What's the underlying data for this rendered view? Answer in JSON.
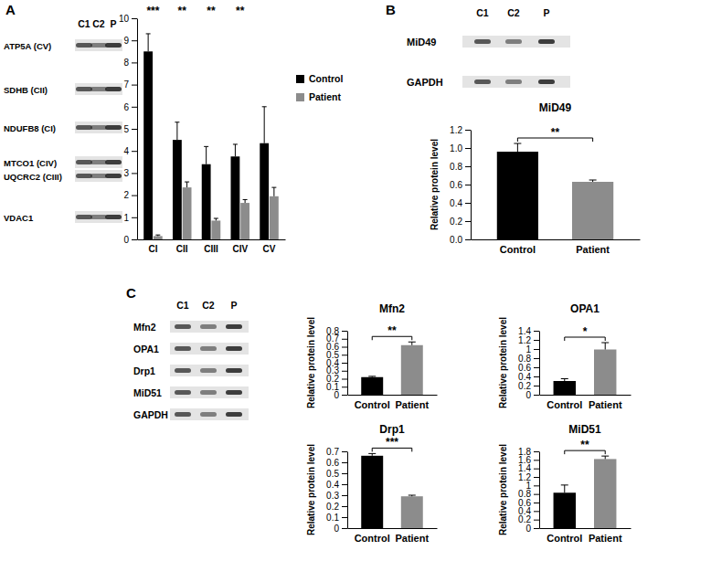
{
  "chart_data": [
    {
      "type": "bar",
      "categories": [
        "CI",
        "CII",
        "CIII",
        "CIV",
        "CV"
      ],
      "series": [
        {
          "name": "Control",
          "color": "#000000",
          "values": [
            8.5,
            4.5,
            3.4,
            3.75,
            4.35
          ],
          "errors": [
            0.8,
            0.8,
            0.8,
            0.55,
            1.65
          ]
        },
        {
          "name": "Patient",
          "color": "#8c8c8c",
          "values": [
            0.15,
            2.35,
            0.85,
            1.65,
            1.95
          ],
          "errors": [
            0.05,
            0.25,
            0.1,
            0.15,
            0.4
          ]
        }
      ],
      "annotations": [
        "***",
        "**",
        "**",
        "**",
        null
      ],
      "ylim": [
        0,
        10
      ],
      "yticks": [
        0,
        1,
        2,
        3,
        4,
        5,
        6,
        7,
        8,
        9,
        10
      ],
      "legend": "top-right"
    },
    {
      "type": "bar",
      "title": "MiD49",
      "y_label": "Relative protein level",
      "categories": [
        "Control",
        "Patient"
      ],
      "values": [
        0.96,
        0.63
      ],
      "errors": [
        0.09,
        0.02
      ],
      "colors": [
        "#000000",
        "#8c8c8c"
      ],
      "annotation": "**",
      "ylim": [
        0,
        1.2
      ],
      "yticks": [
        {
          "value": 0,
          "label": "0.0"
        },
        0.2,
        0.4,
        0.6,
        0.8,
        {
          "value": 1,
          "label": "1.0"
        },
        1.2
      ]
    },
    {
      "type": "bar",
      "title": "Mfn2",
      "y_label": "Relative protein level",
      "categories": [
        "Control",
        "Patient"
      ],
      "values": [
        0.22,
        0.62
      ],
      "errors": [
        0.01,
        0.04
      ],
      "colors": [
        "#000000",
        "#8c8c8c"
      ],
      "annotation": "**",
      "ylim": [
        0,
        0.8
      ],
      "yticks": [
        0,
        0.1,
        0.2,
        0.3,
        0.4,
        0.5,
        0.6,
        0.7,
        0.8
      ]
    },
    {
      "type": "bar",
      "title": "OPA1",
      "y_label": "Relative protein level",
      "categories": [
        "Control",
        "Patient"
      ],
      "values": [
        0.3,
        0.99
      ],
      "errors": [
        0.05,
        0.15
      ],
      "colors": [
        "#000000",
        "#8c8c8c"
      ],
      "annotation": "*",
      "ylim": [
        0,
        1.4
      ],
      "yticks": [
        0,
        0.2,
        0.4,
        0.6,
        0.8,
        1,
        1.2,
        1.4
      ]
    },
    {
      "type": "bar",
      "title": "Drp1",
      "y_label": "Relative protein level",
      "categories": [
        "Control",
        "Patient"
      ],
      "values": [
        0.66,
        0.29
      ],
      "errors": [
        0.02,
        0.01
      ],
      "colors": [
        "#000000",
        "#8c8c8c"
      ],
      "annotation": "***",
      "ylim": [
        0,
        0.7
      ],
      "yticks": [
        0,
        0.1,
        0.2,
        0.3,
        0.4,
        0.5,
        0.6,
        0.7
      ]
    },
    {
      "type": "bar",
      "title": "MiD51",
      "y_label": "Relative protein level",
      "categories": [
        "Control",
        "Patient"
      ],
      "values": [
        0.83,
        1.62
      ],
      "errors": [
        0.18,
        0.07
      ],
      "colors": [
        "#000000",
        "#8c8c8c"
      ],
      "annotation": "**",
      "ylim": [
        0,
        1.8
      ],
      "yticks": [
        0,
        0.2,
        0.4,
        0.6,
        0.8,
        1,
        1.2,
        1.4,
        1.6,
        1.8
      ]
    }
  ],
  "blots": [
    {
      "panel": "A",
      "lanes": [
        "C1",
        "C2",
        "P"
      ],
      "rows": [
        "ATP5A (CV)",
        "SDHB (CII)",
        "NDUFB8 (CI)",
        "MTCO1 (CIV)",
        "UQCRC2 (CIII)",
        "VDAC1"
      ]
    },
    {
      "panel": "B",
      "lanes": [
        "C1",
        "C2",
        "P"
      ],
      "rows": [
        "MiD49",
        "GAPDH"
      ]
    },
    {
      "panel": "C",
      "lanes": [
        "C1",
        "C2",
        "P"
      ],
      "rows": [
        "Mfn2",
        "OPA1",
        "Drp1",
        "MiD51",
        "GAPDH"
      ]
    }
  ]
}
